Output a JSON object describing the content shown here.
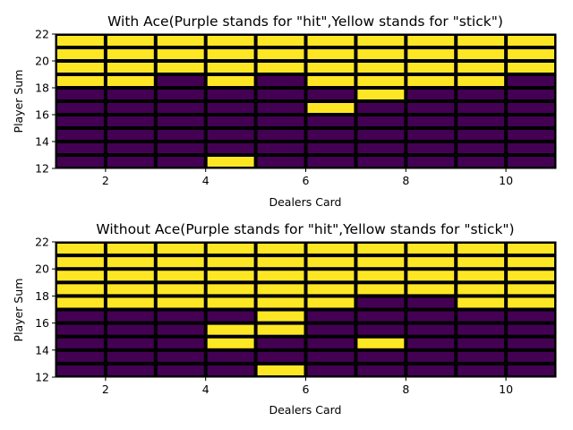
{
  "colors": {
    "hit": "#440154",
    "stick": "#fde725",
    "grid": "#000000"
  },
  "chart_data": [
    {
      "type": "heatmap",
      "title": "With Ace(Purple stands for \"hit\",Yellow stands for \"stick\")",
      "xlabel": "Dealers Card",
      "ylabel": "Player Sum",
      "xlim": [
        1,
        11
      ],
      "ylim": [
        12,
        22
      ],
      "x_ticks": [
        "2",
        "4",
        "6",
        "8",
        "10"
      ],
      "y_ticks": [
        "12",
        "14",
        "16",
        "18",
        "20",
        "22"
      ],
      "dealer_cards": [
        1,
        2,
        3,
        4,
        5,
        6,
        7,
        8,
        9,
        10
      ],
      "player_sums": [
        12,
        13,
        14,
        15,
        16,
        17,
        18,
        19,
        20,
        21
      ],
      "legend": {
        "0": "hit",
        "1": "stick"
      },
      "values": [
        [
          0,
          0,
          0,
          1,
          0,
          0,
          0,
          0,
          0,
          0
        ],
        [
          0,
          0,
          0,
          0,
          0,
          0,
          0,
          0,
          0,
          0
        ],
        [
          0,
          0,
          0,
          0,
          0,
          0,
          0,
          0,
          0,
          0
        ],
        [
          0,
          0,
          0,
          0,
          0,
          0,
          0,
          0,
          0,
          0
        ],
        [
          0,
          0,
          0,
          0,
          0,
          1,
          0,
          0,
          0,
          0
        ],
        [
          0,
          0,
          0,
          0,
          0,
          0,
          1,
          0,
          0,
          0
        ],
        [
          1,
          1,
          0,
          1,
          0,
          1,
          1,
          1,
          1,
          0
        ],
        [
          1,
          1,
          1,
          1,
          1,
          1,
          1,
          1,
          1,
          1
        ],
        [
          1,
          1,
          1,
          1,
          1,
          1,
          1,
          1,
          1,
          1
        ],
        [
          1,
          1,
          1,
          1,
          1,
          1,
          1,
          1,
          1,
          1
        ]
      ]
    },
    {
      "type": "heatmap",
      "title": "Without Ace(Purple stands for \"hit\",Yellow stands for \"stick\")",
      "xlabel": "Dealers Card",
      "ylabel": "Player Sum",
      "xlim": [
        1,
        11
      ],
      "ylim": [
        12,
        22
      ],
      "x_ticks": [
        "2",
        "4",
        "6",
        "8",
        "10"
      ],
      "y_ticks": [
        "12",
        "14",
        "16",
        "18",
        "20",
        "22"
      ],
      "dealer_cards": [
        1,
        2,
        3,
        4,
        5,
        6,
        7,
        8,
        9,
        10
      ],
      "player_sums": [
        12,
        13,
        14,
        15,
        16,
        17,
        18,
        19,
        20,
        21
      ],
      "legend": {
        "0": "hit",
        "1": "stick"
      },
      "values": [
        [
          0,
          0,
          0,
          0,
          1,
          0,
          0,
          0,
          0,
          0
        ],
        [
          0,
          0,
          0,
          0,
          0,
          0,
          0,
          0,
          0,
          0
        ],
        [
          0,
          0,
          0,
          1,
          0,
          0,
          1,
          0,
          0,
          0
        ],
        [
          0,
          0,
          0,
          1,
          1,
          0,
          0,
          0,
          0,
          0
        ],
        [
          0,
          0,
          0,
          0,
          1,
          0,
          0,
          0,
          0,
          0
        ],
        [
          1,
          1,
          1,
          1,
          1,
          1,
          0,
          0,
          1,
          1
        ],
        [
          1,
          1,
          1,
          1,
          1,
          1,
          1,
          1,
          1,
          1
        ],
        [
          1,
          1,
          1,
          1,
          1,
          1,
          1,
          1,
          1,
          1
        ],
        [
          1,
          1,
          1,
          1,
          1,
          1,
          1,
          1,
          1,
          1
        ],
        [
          1,
          1,
          1,
          1,
          1,
          1,
          1,
          1,
          1,
          1
        ]
      ]
    }
  ]
}
